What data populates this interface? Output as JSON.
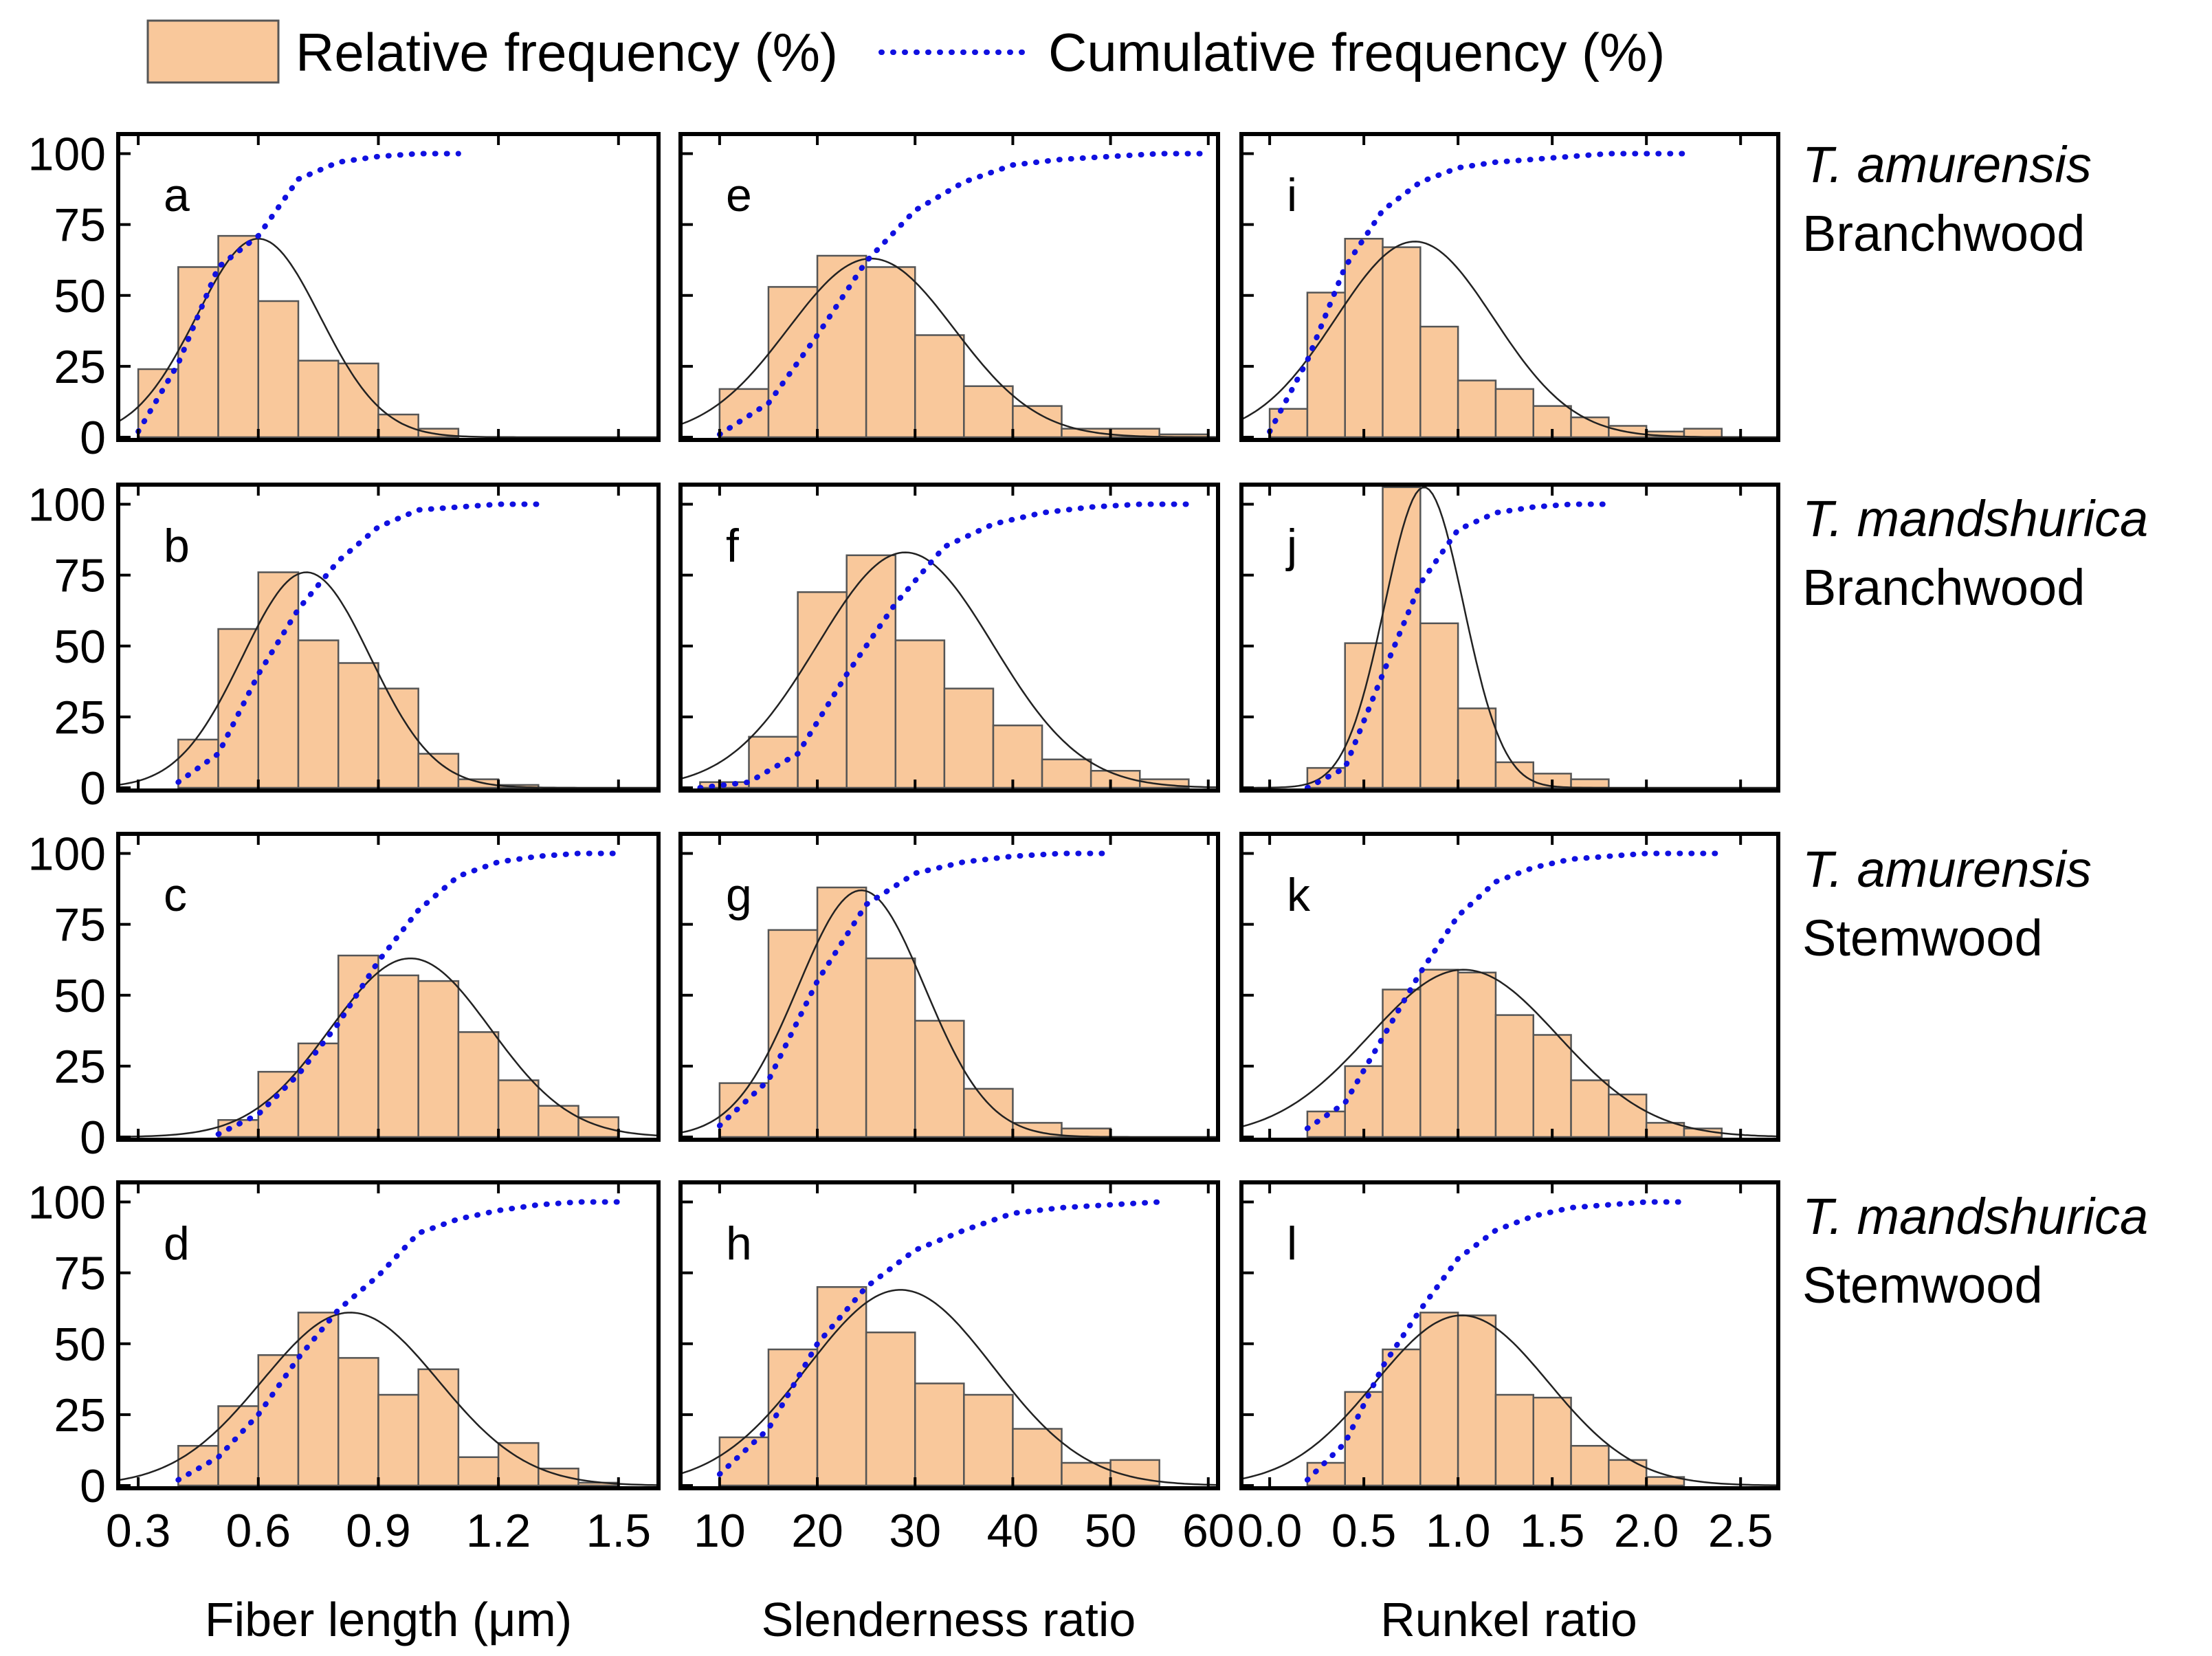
{
  "legend": {
    "bar_label": "Relative frequency (%)",
    "line_label": "Cumulative frequency (%)",
    "bar_color": "#f9c89b",
    "line_color": "#1010e0"
  },
  "columns": [
    {
      "xlabel": "Fiber length (μm)",
      "xlim": [
        0.25,
        1.6
      ],
      "ticks": [
        0.3,
        0.6,
        0.9,
        1.2,
        1.5
      ],
      "tick_labels": [
        "0.3",
        "0.6",
        "0.9",
        "1.2",
        "1.5"
      ]
    },
    {
      "xlabel": "Slenderness ratio",
      "xlim": [
        6,
        61
      ],
      "ticks": [
        10,
        20,
        30,
        40,
        50,
        60
      ],
      "tick_labels": [
        "10",
        "20",
        "30",
        "40",
        "50",
        "60"
      ]
    },
    {
      "xlabel": "Runkel ratio",
      "xlim": [
        -0.15,
        2.7
      ],
      "ticks": [
        0,
        0.5,
        1.0,
        1.5,
        2.0,
        2.5
      ],
      "tick_labels": [
        "0.0",
        "0.5",
        "1.0",
        "1.5",
        "2.0",
        "2.5"
      ]
    }
  ],
  "rows": [
    {
      "species": "T. amurensis",
      "tissue": "Branchwood"
    },
    {
      "species": "T. mandshurica",
      "tissue": "Branchwood"
    },
    {
      "species": "T. amurensis",
      "tissue": "Stemwood"
    },
    {
      "species": "T. mandshurica",
      "tissue": "Stemwood"
    }
  ],
  "y_axis": {
    "ylim": [
      0,
      104
    ],
    "ticks": [
      0,
      25,
      50,
      75,
      100
    ],
    "tick_labels": [
      "0",
      "25",
      "50",
      "75",
      "100"
    ]
  },
  "chart_data": [
    {
      "type": "bar",
      "panel": "a",
      "row": 0,
      "col": 0,
      "bin_start": 0.3,
      "bin_width": 0.1,
      "values": [
        24,
        60,
        71,
        48,
        27,
        26,
        8,
        3
      ],
      "cumulative": [
        2,
        26,
        60,
        71,
        91,
        97,
        99,
        100,
        100
      ],
      "fit_mean": 0.6,
      "fit_sd": 0.155,
      "fit_peak": 70
    },
    {
      "type": "bar",
      "panel": "b",
      "row": 1,
      "col": 0,
      "bin_start": 0.4,
      "bin_width": 0.1,
      "values": [
        17,
        56,
        76,
        52,
        44,
        35,
        12,
        3,
        1
      ],
      "cumulative": [
        2,
        12,
        40,
        63,
        80,
        92,
        98,
        99,
        100,
        100
      ],
      "fit_mean": 0.72,
      "fit_sd": 0.16,
      "fit_peak": 76
    },
    {
      "type": "bar",
      "panel": "c",
      "row": 2,
      "col": 0,
      "bin_start": 0.5,
      "bin_width": 0.1,
      "values": [
        6,
        23,
        33,
        64,
        57,
        55,
        37,
        20,
        11,
        7
      ],
      "cumulative": [
        1,
        8,
        22,
        40,
        62,
        80,
        92,
        97,
        99,
        100,
        100
      ],
      "fit_mean": 0.98,
      "fit_sd": 0.2,
      "fit_peak": 63
    },
    {
      "type": "bar",
      "panel": "d",
      "row": 3,
      "col": 0,
      "bin_start": 0.4,
      "bin_width": 0.1,
      "values": [
        14,
        28,
        46,
        61,
        45,
        32,
        41,
        10,
        15,
        6,
        1
      ],
      "cumulative": [
        2,
        10,
        25,
        45,
        62,
        74,
        89,
        94,
        97,
        99,
        100,
        100
      ],
      "fit_mean": 0.83,
      "fit_sd": 0.22,
      "fit_peak": 61
    },
    {
      "type": "bar",
      "panel": "e",
      "row": 0,
      "col": 1,
      "bin_start": 10,
      "bin_width": 5,
      "values": [
        17,
        53,
        64,
        60,
        36,
        18,
        11,
        3,
        3,
        1
      ],
      "cumulative": [
        1,
        12,
        36,
        62,
        80,
        90,
        96,
        98,
        99,
        100,
        100
      ],
      "fit_mean": 25.5,
      "fit_sd": 8.5,
      "fit_peak": 63
    },
    {
      "type": "bar",
      "panel": "f",
      "row": 1,
      "col": 1,
      "bin_start": 8,
      "bin_width": 5,
      "values": [
        2,
        18,
        69,
        82,
        52,
        35,
        22,
        10,
        6,
        3
      ],
      "cumulative": [
        0,
        2,
        12,
        40,
        65,
        85,
        93,
        97,
        99,
        100,
        100
      ],
      "fit_mean": 29,
      "fit_sd": 9,
      "fit_peak": 83
    },
    {
      "type": "bar",
      "panel": "g",
      "row": 2,
      "col": 1,
      "bin_start": 10,
      "bin_width": 5,
      "values": [
        19,
        73,
        88,
        63,
        41,
        17,
        5,
        3
      ],
      "cumulative": [
        4,
        20,
        55,
        82,
        93,
        97,
        99,
        100,
        100
      ],
      "fit_mean": 24.5,
      "fit_sd": 6.5,
      "fit_peak": 87
    },
    {
      "type": "bar",
      "panel": "h",
      "row": 3,
      "col": 1,
      "bin_start": 10,
      "bin_width": 5,
      "values": [
        17,
        48,
        70,
        54,
        36,
        32,
        20,
        8,
        9
      ],
      "cumulative": [
        4,
        20,
        50,
        70,
        83,
        90,
        96,
        98,
        99,
        100
      ],
      "fit_mean": 28.5,
      "fit_sd": 9.5,
      "fit_peak": 69
    },
    {
      "type": "bar",
      "panel": "i",
      "row": 0,
      "col": 2,
      "bin_start": 0,
      "bin_width": 0.2,
      "values": [
        10,
        51,
        70,
        67,
        39,
        20,
        17,
        11,
        7,
        4,
        2,
        3
      ],
      "cumulative": [
        2,
        27,
        60,
        80,
        90,
        95,
        97,
        98,
        99,
        100,
        100,
        100
      ],
      "fit_mean": 0.77,
      "fit_sd": 0.42,
      "fit_peak": 69
    },
    {
      "type": "bar",
      "panel": "j",
      "row": 1,
      "col": 2,
      "bin_start": 0.2,
      "bin_width": 0.2,
      "values": [
        7,
        51,
        106,
        58,
        28,
        9,
        5,
        3
      ],
      "cumulative": [
        0,
        7,
        40,
        72,
        91,
        97,
        99,
        100,
        100
      ],
      "fit_mean": 0.82,
      "fit_sd": 0.21,
      "fit_peak": 106
    },
    {
      "type": "bar",
      "panel": "k",
      "row": 2,
      "col": 2,
      "bin_start": 0.2,
      "bin_width": 0.2,
      "values": [
        9,
        25,
        52,
        59,
        58,
        43,
        36,
        20,
        15,
        5,
        3
      ],
      "cumulative": [
        3,
        12,
        35,
        58,
        78,
        90,
        95,
        98,
        99,
        100,
        100,
        100
      ],
      "fit_mean": 1.03,
      "fit_sd": 0.5,
      "fit_peak": 59
    },
    {
      "type": "bar",
      "panel": "l",
      "row": 3,
      "col": 2,
      "bin_start": 0.2,
      "bin_width": 0.2,
      "values": [
        8,
        33,
        48,
        61,
        60,
        32,
        31,
        14,
        9,
        3
      ],
      "cumulative": [
        2,
        15,
        42,
        62,
        80,
        90,
        95,
        98,
        99,
        100,
        100
      ],
      "fit_mean": 1.02,
      "fit_sd": 0.46,
      "fit_peak": 60
    }
  ]
}
